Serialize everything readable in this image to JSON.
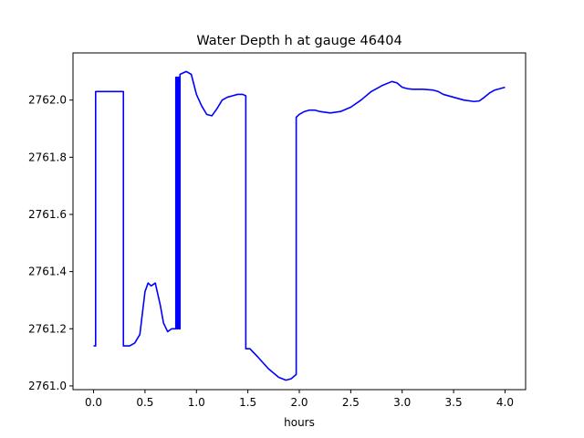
{
  "chart_data": {
    "type": "line",
    "title": "Water Depth h at gauge 46404",
    "xlabel": "hours",
    "ylabel": "",
    "xlim": [
      -0.2,
      4.2
    ],
    "ylim": [
      2760.987,
      2762.165
    ],
    "x_ticks": [
      0.0,
      0.5,
      1.0,
      1.5,
      2.0,
      2.5,
      3.0,
      3.5,
      4.0
    ],
    "x_tick_labels": [
      "0.0",
      "0.5",
      "1.0",
      "1.5",
      "2.0",
      "2.5",
      "3.0",
      "3.5",
      "4.0"
    ],
    "y_ticks": [
      2761.0,
      2761.2,
      2761.4,
      2761.6,
      2761.8,
      2762.0
    ],
    "y_tick_labels": [
      "2761.0",
      "2761.2",
      "2761.4",
      "2761.6",
      "2761.8",
      "2762.0"
    ],
    "grid": false,
    "legend": "none",
    "series": [
      {
        "color": "#0000ff",
        "x": [
          0.0,
          0.02,
          0.02,
          0.29,
          0.29,
          0.35,
          0.4,
          0.45,
          0.5,
          0.53,
          0.56,
          0.6,
          0.65,
          0.68,
          0.72,
          0.76,
          0.8,
          0.8,
          0.81,
          0.81,
          0.82,
          0.82,
          0.83,
          0.83,
          0.84,
          0.84,
          0.9,
          0.95,
          1.0,
          1.05,
          1.1,
          1.15,
          1.2,
          1.25,
          1.3,
          1.35,
          1.4,
          1.45,
          1.48,
          1.48,
          1.52,
          1.6,
          1.7,
          1.8,
          1.87,
          1.92,
          1.97,
          1.97,
          2.0,
          2.05,
          2.1,
          2.15,
          2.2,
          2.3,
          2.4,
          2.5,
          2.6,
          2.7,
          2.8,
          2.9,
          2.95,
          3.0,
          3.05,
          3.1,
          3.2,
          3.3,
          3.35,
          3.4,
          3.5,
          3.6,
          3.7,
          3.75,
          3.8,
          3.85,
          3.9,
          4.0
        ],
        "y": [
          2761.14,
          2761.14,
          2762.03,
          2762.03,
          2761.14,
          2761.14,
          2761.15,
          2761.18,
          2761.33,
          2761.36,
          2761.35,
          2761.36,
          2761.28,
          2761.22,
          2761.19,
          2761.2,
          2761.2,
          2762.08,
          2762.08,
          2761.2,
          2761.2,
          2762.08,
          2762.08,
          2761.2,
          2761.2,
          2762.09,
          2762.1,
          2762.09,
          2762.02,
          2761.98,
          2761.95,
          2761.945,
          2761.97,
          2762.0,
          2762.01,
          2762.015,
          2762.02,
          2762.02,
          2762.015,
          2761.13,
          2761.13,
          2761.1,
          2761.06,
          2761.03,
          2761.02,
          2761.025,
          2761.04,
          2761.94,
          2761.95,
          2761.96,
          2761.965,
          2761.965,
          2761.96,
          2761.955,
          2761.96,
          2761.975,
          2762.0,
          2762.03,
          2762.05,
          2762.065,
          2762.06,
          2762.045,
          2762.04,
          2762.038,
          2762.038,
          2762.035,
          2762.03,
          2762.02,
          2762.01,
          2762.0,
          2761.995,
          2761.997,
          2762.01,
          2762.025,
          2762.035,
          2762.045
        ]
      }
    ]
  }
}
